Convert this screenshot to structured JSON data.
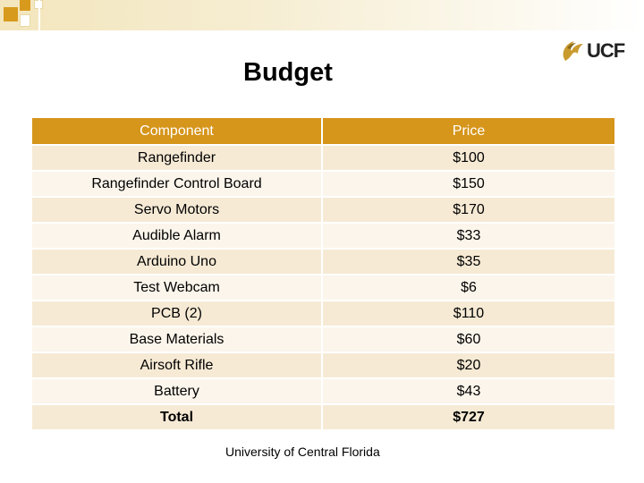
{
  "slide": {
    "title": "Budget",
    "footer": "University of Central Florida",
    "logo_text": "UCF"
  },
  "colors": {
    "accent": "#d6951b",
    "row_dark": "#f6ead5",
    "row_light": "#fbf5eb"
  },
  "table": {
    "headers": [
      "Component",
      "Price"
    ],
    "rows": [
      [
        "Rangefinder",
        "$100"
      ],
      [
        "Rangefinder Control Board",
        "$150"
      ],
      [
        "Servo Motors",
        "$170"
      ],
      [
        "Audible Alarm",
        "$33"
      ],
      [
        "Arduino Uno",
        "$35"
      ],
      [
        "Test Webcam",
        "$6"
      ],
      [
        "PCB (2)",
        "$110"
      ],
      [
        "Base Materials",
        "$60"
      ],
      [
        "Airsoft Rifle",
        "$20"
      ],
      [
        "Battery",
        "$43"
      ]
    ],
    "total": [
      "Total",
      "$727"
    ]
  }
}
